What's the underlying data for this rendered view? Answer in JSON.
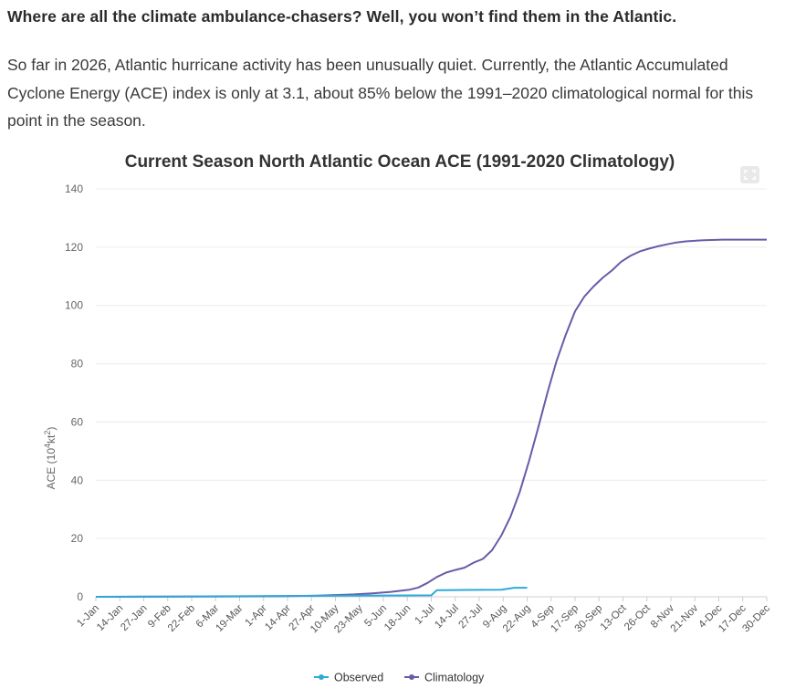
{
  "article": {
    "headline": "Where are all the climate ambulance-chasers? Well, you won’t find them in the Atlantic.",
    "intro": "So far in 2026, Atlantic hurricane activity has been unusually quiet. Currently, the Atlantic Accumulated Cyclone Energy (ACE) index is only at 3.1, about 85% below the 1991–2020 climatological normal for this point in the season."
  },
  "chart_data": {
    "type": "line",
    "title": "Current Season North Atlantic Ocean ACE (1991-2020 Climatology)",
    "ylabel": "ACE (10",
    "ylabel_sup": "4",
    "ylabel_unit": "kt",
    "ylabel_unit_sup": "2",
    "ylabel_end": ")",
    "ylim": [
      0,
      140
    ],
    "yticks": [
      0,
      20,
      40,
      60,
      80,
      100,
      120,
      140
    ],
    "grid": true,
    "legend_position": "bottom-center",
    "categories": [
      "1-Jan",
      "14-Jan",
      "27-Jan",
      "9-Feb",
      "22-Feb",
      "6-Mar",
      "19-Mar",
      "1-Apr",
      "14-Apr",
      "27-Apr",
      "10-May",
      "23-May",
      "5-Jun",
      "18-Jun",
      "1-Jul",
      "14-Jul",
      "27-Jul",
      "9-Aug",
      "22-Aug",
      "4-Sep",
      "17-Sep",
      "30-Sep",
      "13-Oct",
      "26-Oct",
      "8-Nov",
      "21-Nov",
      "4-Dec",
      "17-Dec",
      "30-Dec"
    ],
    "series": [
      {
        "name": "Observed",
        "color": "#2ea9d9",
        "x": [
          0,
          182,
          185,
          188,
          220,
          227,
          234
        ],
        "y": [
          0,
          0.5,
          2.3,
          2.3,
          2.4,
          3.1,
          3.1
        ]
      },
      {
        "name": "Climatology",
        "color": "#6a5aa8",
        "x": [
          0,
          60,
          100,
          120,
          140,
          150,
          160,
          170,
          175,
          180,
          185,
          190,
          195,
          200,
          205,
          210,
          215,
          220,
          225,
          230,
          235,
          240,
          245,
          250,
          255,
          260,
          265,
          270,
          275,
          280,
          285,
          290,
          295,
          300,
          305,
          310,
          315,
          320,
          330,
          340,
          350,
          364
        ],
        "y": [
          0,
          0.1,
          0.2,
          0.4,
          0.8,
          1.2,
          1.7,
          2.4,
          3.2,
          4.8,
          6.8,
          8.3,
          9.2,
          10.0,
          11.7,
          13.0,
          16.0,
          21.0,
          27.5,
          36.0,
          46.5,
          58.0,
          70.0,
          81.0,
          90.0,
          98.0,
          103.0,
          106.5,
          109.5,
          112.0,
          115.0,
          117.0,
          118.5,
          119.5,
          120.3,
          121.0,
          121.6,
          122.0,
          122.4,
          122.6,
          122.6,
          122.6
        ]
      }
    ]
  }
}
